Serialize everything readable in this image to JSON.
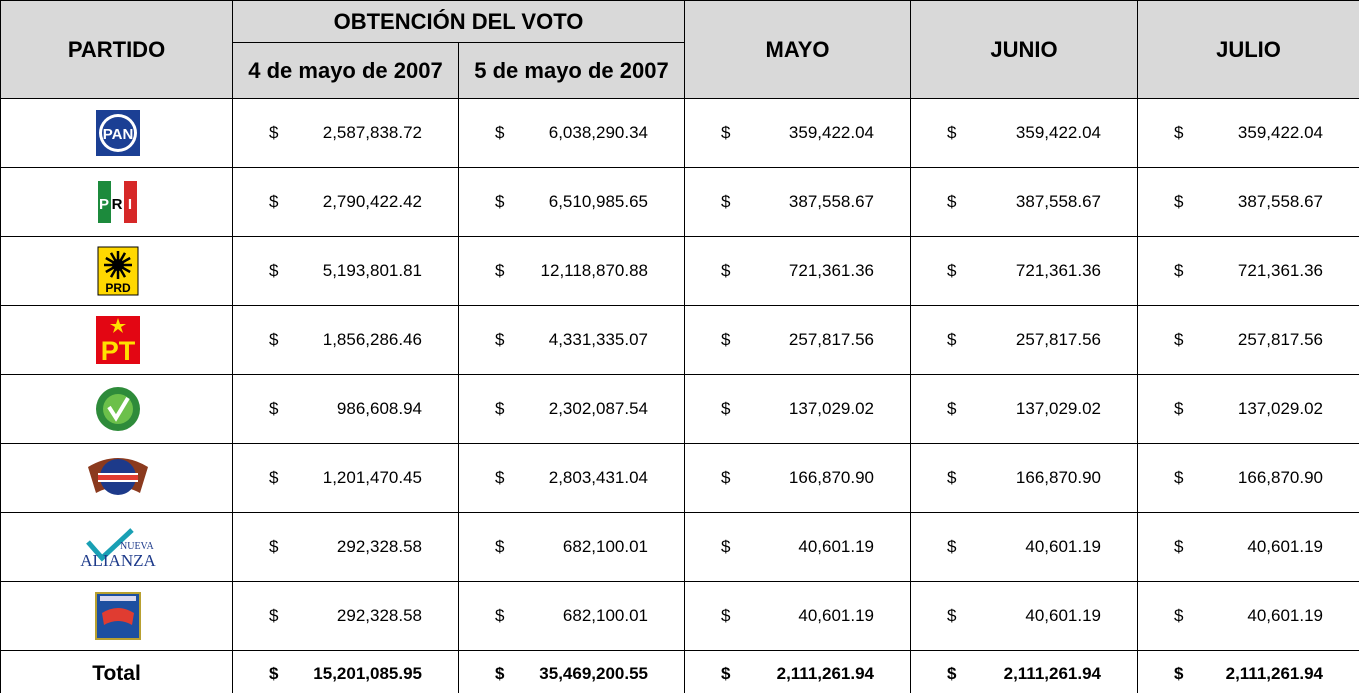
{
  "table": {
    "header": {
      "partido": "PARTIDO",
      "group": "OBTENCIÓN DEL VOTO",
      "columns": [
        "4 de mayo de 2007",
        "5 de mayo de 2007",
        "MAYO",
        "JUNIO",
        "JULIO"
      ]
    },
    "currency": "$",
    "rows": [
      {
        "logo": [
          "PAN"
        ],
        "values": [
          "2,587,838.72",
          "6,038,290.34",
          "359,422.04",
          "359,422.04",
          "359,422.04"
        ]
      },
      {
        "logo": [
          "P",
          "R",
          "I"
        ],
        "values": [
          "2,790,422.42",
          "6,510,985.65",
          "387,558.67",
          "387,558.67",
          "387,558.67"
        ]
      },
      {
        "logo": [
          "PRD"
        ],
        "values": [
          "5,193,801.81",
          "12,118,870.88",
          "721,361.36",
          "721,361.36",
          "721,361.36"
        ]
      },
      {
        "logo": [
          "PT"
        ],
        "values": [
          "1,856,286.46",
          "4,331,335.07",
          "257,817.56",
          "257,817.56",
          "257,817.56"
        ]
      },
      {
        "values": [
          "986,608.94",
          "2,302,087.54",
          "137,029.02",
          "137,029.02",
          "137,029.02"
        ]
      },
      {
        "values": [
          "1,201,470.45",
          "2,803,431.04",
          "166,870.90",
          "166,870.90",
          "166,870.90"
        ]
      },
      {
        "logo": [
          "NUEVA",
          "ALIANZA"
        ],
        "values": [
          "292,328.58",
          "682,100.01",
          "40,601.19",
          "40,601.19",
          "40,601.19"
        ]
      },
      {
        "values": [
          "292,328.58",
          "682,100.01",
          "40,601.19",
          "40,601.19",
          "40,601.19"
        ]
      }
    ],
    "total": {
      "label": "Total",
      "values": [
        "15,201,085.95",
        "35,469,200.55",
        "2,111,261.94",
        "2,111,261.94",
        "2,111,261.94"
      ]
    }
  }
}
